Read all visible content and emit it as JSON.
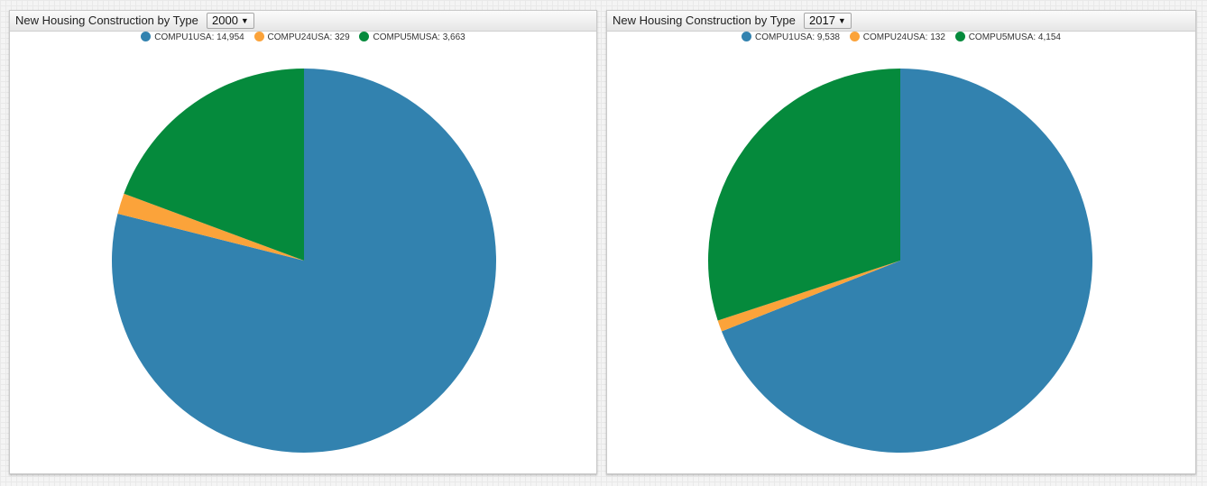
{
  "colors": {
    "COMPU1USA": "#3282af",
    "COMPU24USA": "#fba33a",
    "COMPU5MUSA": "#058a3c"
  },
  "widgets": [
    {
      "title": "New Housing Construction by Type",
      "selected_year": "2000",
      "legend": [
        "COMPU1USA: 14,954",
        "COMPU24USA: 329",
        "COMPU5MUSA: 3,663"
      ]
    },
    {
      "title": "New Housing Construction by Type",
      "selected_year": "2017",
      "legend": [
        "COMPU1USA: 9,538",
        "COMPU24USA: 132",
        "COMPU5MUSA: 4,154"
      ]
    }
  ],
  "chart_data": [
    {
      "type": "pie",
      "title": "New Housing Construction by Type",
      "categories": [
        "COMPU1USA",
        "COMPU24USA",
        "COMPU5MUSA"
      ],
      "values": [
        14954,
        329,
        3663
      ]
    },
    {
      "type": "pie",
      "title": "New Housing Construction by Type",
      "categories": [
        "COMPU1USA",
        "COMPU24USA",
        "COMPU5MUSA"
      ],
      "values": [
        9538,
        132,
        4154
      ]
    }
  ]
}
